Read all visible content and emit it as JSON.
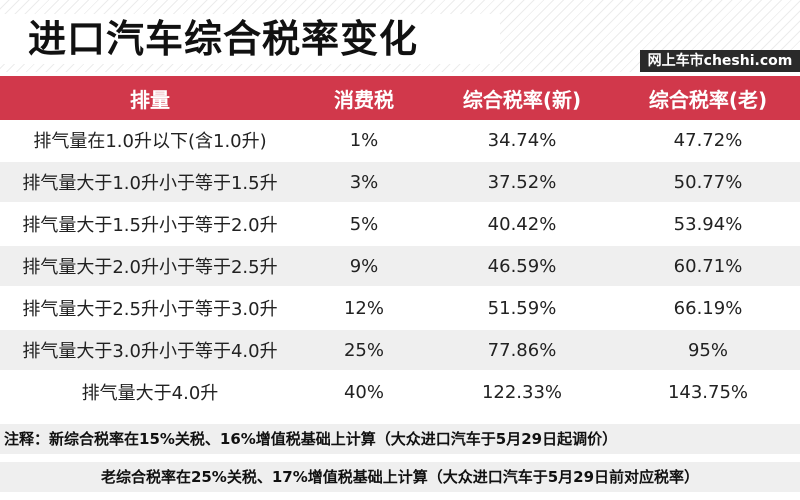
{
  "title": "进口汽车综合税率变化",
  "brand": "网上车市cheshi.com",
  "table": {
    "headers": [
      "排量",
      "消费税",
      "综合税率(新)",
      "综合税率(老)"
    ],
    "rows": [
      [
        "排气量在1.0升以下(含1.0升)",
        "1%",
        "34.74%",
        "47.72%"
      ],
      [
        "排气量大于1.0升小于等于1.5升",
        "3%",
        "37.52%",
        "50.77%"
      ],
      [
        "排气量大于1.5升小于等于2.0升",
        "5%",
        "40.42%",
        "53.94%"
      ],
      [
        "排气量大于2.0升小于等于2.5升",
        "9%",
        "46.59%",
        "60.71%"
      ],
      [
        "排气量大于2.5升小于等于3.0升",
        "12%",
        "51.59%",
        "66.19%"
      ],
      [
        "排气量大于3.0升小于等于4.0升",
        "25%",
        "77.86%",
        "95%"
      ],
      [
        "排气量大于4.0升",
        "40%",
        "122.33%",
        "143.75%"
      ]
    ]
  },
  "notes": {
    "line1": "注释：新综合税率在15%关税、16%增值税基础上计算（大众进口汽车于5月29日起调价）",
    "line2": "老综合税率在25%关税、17%增值税基础上计算（大众进口汽车于5月29日前对应税率）"
  },
  "colors": {
    "header_bg": "#d1384b",
    "brand_bg": "#2a2a2a"
  }
}
